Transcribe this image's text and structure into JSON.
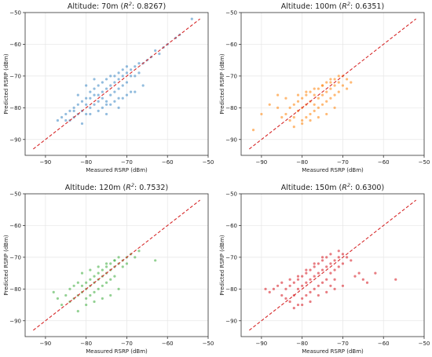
{
  "chart_data": [
    {
      "type": "scatter",
      "title_prefix": "Altitude: 70m (",
      "title_r2": "R",
      "title_sup": "2",
      "title_suffix": ": 0.8267)",
      "xlabel": "Measured RSRP (dBm)",
      "ylabel": "Predicted RSRP (dBm)",
      "xlim": [
        -95,
        -50
      ],
      "ylim": [
        -95,
        -50
      ],
      "xticks": [
        -90,
        -80,
        -70,
        -60,
        -50
      ],
      "yticks": [
        -90,
        -80,
        -70,
        -60,
        -50
      ],
      "grid": true,
      "color": "#4a90c8",
      "reference_line": {
        "from": [
          -93,
          -93
        ],
        "to": [
          -52,
          -52
        ],
        "color": "#d62728",
        "style": "dashed"
      },
      "series": [
        {
          "x": [
            -87,
            -86,
            -85,
            -85,
            -84,
            -84,
            -83,
            -83,
            -82,
            -82,
            -81,
            -81,
            -80,
            -80,
            -80,
            -79,
            -79,
            -79,
            -78,
            -78,
            -78,
            -77,
            -77,
            -77,
            -76,
            -76,
            -76,
            -75,
            -75,
            -75,
            -74,
            -74,
            -74,
            -73,
            -73,
            -73,
            -72,
            -72,
            -72,
            -71,
            -71,
            -71,
            -70,
            -70,
            -70,
            -69,
            -69,
            -68,
            -68,
            -67,
            -67,
            -66,
            -65,
            -64,
            -63,
            -62,
            -61,
            -60,
            -58,
            -57,
            -54,
            -82,
            -80,
            -78,
            -76,
            -74,
            -72,
            -70,
            -68,
            -66,
            -79,
            -77,
            -75,
            -73,
            -71,
            -69,
            -81,
            -83,
            -75,
            -72
          ],
          "y": [
            -84,
            -83,
            -84,
            -82,
            -84,
            -81,
            -83,
            -80,
            -82,
            -79,
            -81,
            -78,
            -82,
            -79,
            -77,
            -80,
            -77,
            -75,
            -79,
            -76,
            -74,
            -78,
            -76,
            -73,
            -77,
            -75,
            -72,
            -78,
            -74,
            -71,
            -76,
            -73,
            -70,
            -75,
            -72,
            -70,
            -74,
            -71,
            -69,
            -73,
            -70,
            -68,
            -72,
            -69,
            -67,
            -70,
            -68,
            -70,
            -67,
            -69,
            -66,
            -66,
            -65,
            -64,
            -62,
            -63,
            -61,
            -60,
            -58,
            -57,
            -52,
            -76,
            -73,
            -71,
            -80,
            -79,
            -77,
            -76,
            -75,
            -73,
            -82,
            -81,
            -79,
            -78,
            -77,
            -75,
            -85,
            -81,
            -82,
            -80
          ]
        }
      ]
    },
    {
      "type": "scatter",
      "title_prefix": "Altitude: 100m (",
      "title_r2": "R",
      "title_sup": "2",
      "title_suffix": ": 0.6351)",
      "xlabel": "Measured RSRP (dBm)",
      "ylabel": "Predicted RSRP (dBm)",
      "xlim": [
        -95,
        -50
      ],
      "ylim": [
        -95,
        -50
      ],
      "xticks": [
        -90,
        -80,
        -70,
        -60,
        -50
      ],
      "yticks": [
        -90,
        -80,
        -70,
        -60,
        -50
      ],
      "grid": true,
      "color": "#ff8c1a",
      "reference_line": {
        "from": [
          -93,
          -93
        ],
        "to": [
          -52,
          -52
        ],
        "color": "#d62728",
        "style": "dashed"
      },
      "series": [
        {
          "x": [
            -92,
            -90,
            -88,
            -86,
            -85,
            -84,
            -83,
            -83,
            -82,
            -82,
            -81,
            -81,
            -80,
            -80,
            -80,
            -79,
            -79,
            -79,
            -78,
            -78,
            -78,
            -77,
            -77,
            -77,
            -76,
            -76,
            -76,
            -75,
            -75,
            -75,
            -74,
            -74,
            -74,
            -73,
            -73,
            -73,
            -72,
            -72,
            -72,
            -71,
            -71,
            -71,
            -70,
            -70,
            -69,
            -69,
            -68,
            -82,
            -80,
            -78,
            -76,
            -74,
            -72,
            -81,
            -79,
            -77,
            -75,
            -73,
            -84,
            -86
          ],
          "y": [
            -87,
            -82,
            -79,
            -80,
            -83,
            -82,
            -80,
            -84,
            -79,
            -83,
            -78,
            -81,
            -77,
            -80,
            -84,
            -76,
            -79,
            -83,
            -75,
            -78,
            -82,
            -76,
            -79,
            -81,
            -74,
            -77,
            -80,
            -73,
            -76,
            -79,
            -72,
            -75,
            -78,
            -71,
            -74,
            -77,
            -71,
            -73,
            -76,
            -70,
            -72,
            -75,
            -70,
            -73,
            -71,
            -74,
            -72,
            -86,
            -85,
            -84,
            -83,
            -82,
            -80,
            -76,
            -75,
            -74,
            -73,
            -72,
            -77,
            -76
          ]
        }
      ]
    },
    {
      "type": "scatter",
      "title_prefix": "Altitude: 120m (",
      "title_r2": "R",
      "title_sup": "2",
      "title_suffix": ": 0.7532)",
      "xlabel": "Measured RSRP (dBm)",
      "ylabel": "Predicted RSRP (dBm)",
      "xlim": [
        -95,
        -50
      ],
      "ylim": [
        -95,
        -50
      ],
      "xticks": [
        -90,
        -80,
        -70,
        -60,
        -50
      ],
      "yticks": [
        -90,
        -80,
        -70,
        -60,
        -50
      ],
      "grid": true,
      "color": "#4bb34b",
      "reference_line": {
        "from": [
          -93,
          -93
        ],
        "to": [
          -52,
          -52
        ],
        "color": "#d62728",
        "style": "dashed"
      },
      "series": [
        {
          "x": [
            -88,
            -87,
            -86,
            -85,
            -84,
            -84,
            -83,
            -83,
            -82,
            -82,
            -81,
            -81,
            -80,
            -80,
            -80,
            -79,
            -79,
            -79,
            -78,
            -78,
            -78,
            -77,
            -77,
            -77,
            -76,
            -76,
            -76,
            -75,
            -75,
            -75,
            -74,
            -74,
            -74,
            -73,
            -73,
            -73,
            -72,
            -72,
            -71,
            -71,
            -70,
            -70,
            -69,
            -68,
            -67,
            -63,
            -82,
            -80,
            -78,
            -76,
            -74,
            -72,
            -81,
            -79,
            -77,
            -75,
            -73
          ],
          "y": [
            -81,
            -83,
            -85,
            -82,
            -84,
            -80,
            -83,
            -79,
            -82,
            -78,
            -81,
            -79,
            -80,
            -78,
            -83,
            -79,
            -77,
            -82,
            -78,
            -76,
            -81,
            -77,
            -75,
            -80,
            -76,
            -74,
            -79,
            -75,
            -73,
            -78,
            -74,
            -72,
            -77,
            -73,
            -71,
            -76,
            -72,
            -70,
            -71,
            -73,
            -70,
            -72,
            -69,
            -70,
            -68,
            -71,
            -87,
            -85,
            -84,
            -83,
            -82,
            -80,
            -75,
            -74,
            -73,
            -72,
            -71
          ]
        }
      ]
    },
    {
      "type": "scatter",
      "title_prefix": "Altitude: 150m (",
      "title_r2": "R",
      "title_sup": "2",
      "title_suffix": ": 0.6300)",
      "xlabel": "Measured RSRP (dBm)",
      "ylabel": "Predicted RSRP (dBm)",
      "xlim": [
        -95,
        -50
      ],
      "ylim": [
        -95,
        -50
      ],
      "xticks": [
        -90,
        -80,
        -70,
        -60,
        -50
      ],
      "yticks": [
        -90,
        -80,
        -70,
        -60,
        -50
      ],
      "grid": true,
      "color": "#d9272e",
      "reference_line": {
        "from": [
          -93,
          -93
        ],
        "to": [
          -52,
          -52
        ],
        "color": "#d62728",
        "style": "dashed"
      },
      "series": [
        {
          "x": [
            -89,
            -88,
            -87,
            -86,
            -85,
            -84,
            -84,
            -83,
            -83,
            -82,
            -82,
            -81,
            -81,
            -81,
            -80,
            -80,
            -80,
            -79,
            -79,
            -79,
            -78,
            -78,
            -78,
            -77,
            -77,
            -77,
            -76,
            -76,
            -76,
            -75,
            -75,
            -75,
            -74,
            -74,
            -74,
            -73,
            -73,
            -73,
            -72,
            -72,
            -72,
            -71,
            -71,
            -70,
            -70,
            -69,
            -68,
            -67,
            -66,
            -65,
            -64,
            -62,
            -57,
            -82,
            -80,
            -78,
            -76,
            -74,
            -72,
            -70,
            -81,
            -79,
            -77,
            -75,
            -73,
            -71,
            -83,
            -85
          ],
          "y": [
            -80,
            -81,
            -80,
            -79,
            -82,
            -80,
            -83,
            -79,
            -84,
            -78,
            -82,
            -77,
            -80,
            -85,
            -76,
            -79,
            -83,
            -75,
            -78,
            -82,
            -74,
            -77,
            -81,
            -73,
            -76,
            -80,
            -72,
            -75,
            -79,
            -71,
            -74,
            -78,
            -70,
            -73,
            -77,
            -72,
            -75,
            -79,
            -71,
            -74,
            -77,
            -70,
            -73,
            -69,
            -72,
            -70,
            -71,
            -76,
            -75,
            -77,
            -78,
            -75,
            -77,
            -86,
            -85,
            -84,
            -82,
            -81,
            -80,
            -79,
            -76,
            -74,
            -72,
            -70,
            -69,
            -68,
            -77,
            -78
          ]
        }
      ]
    }
  ]
}
